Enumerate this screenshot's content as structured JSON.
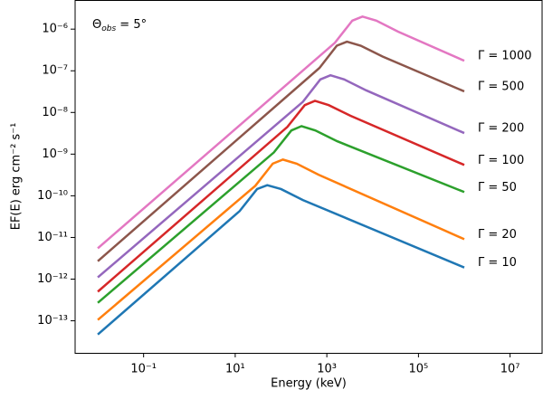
{
  "chart_data": {
    "type": "line",
    "x_label": "Energy (keV)",
    "y_label": "EF(E) erg cm⁻² s⁻¹",
    "annotation": {
      "symbol": "Θ",
      "subscript": "obs",
      "text": " = 5°"
    },
    "log_x": true,
    "log_y": true,
    "xlim": [
      0.0032,
      50000000
    ],
    "ylim": [
      1.7e-14,
      5e-06
    ],
    "xticks": [
      {
        "value": 0.1,
        "label": "10⁻¹"
      },
      {
        "value": 10,
        "label": "10¹"
      },
      {
        "value": 1000,
        "label": "10³"
      },
      {
        "value": 100000,
        "label": "10⁵"
      },
      {
        "value": 10000000,
        "label": "10⁷"
      }
    ],
    "yticks": [
      {
        "value": 1e-13,
        "label": "10⁻¹³"
      },
      {
        "value": 1e-12,
        "label": "10⁻¹²"
      },
      {
        "value": 1e-11,
        "label": "10⁻¹¹"
      },
      {
        "value": 1e-10,
        "label": "10⁻¹⁰"
      },
      {
        "value": 1e-09,
        "label": "10⁻⁹"
      },
      {
        "value": 1e-08,
        "label": "10⁻⁸"
      },
      {
        "value": 1e-07,
        "label": "10⁻⁷"
      },
      {
        "value": 1e-06,
        "label": "10⁻⁶"
      }
    ],
    "series": [
      {
        "name": "Γ = 10",
        "color": "#1f77b4",
        "x": [
          0.01,
          12.5,
          30,
          50,
          100,
          300,
          1000000
        ],
        "values": [
          4.7e-14,
          4.3e-11,
          1.45e-10,
          1.8e-10,
          1.45e-10,
          7.9e-11,
          1.9e-12
        ]
      },
      {
        "name": "Γ = 20",
        "color": "#ff7f0e",
        "x": [
          0.01,
          27.5,
          66,
          110,
          220,
          660,
          1000000
        ],
        "values": [
          1.05e-13,
          1.74e-10,
          5.9e-10,
          7.4e-10,
          5.9e-10,
          3.2e-10,
          9.1e-12
        ]
      },
      {
        "name": "Γ = 50",
        "color": "#2ca02c",
        "x": [
          0.01,
          70,
          168,
          280,
          560,
          1680,
          1000000
        ],
        "values": [
          2.7e-13,
          1.1e-09,
          3.7e-09,
          4.7e-09,
          3.7e-09,
          2.04e-09,
          1.23e-10
        ]
      },
      {
        "name": "Γ = 100",
        "color": "#d62728",
        "x": [
          0.01,
          137.5,
          330,
          550,
          1100,
          3300,
          1000000
        ],
        "values": [
          5e-13,
          4.5e-09,
          1.5e-08,
          1.9e-08,
          1.5e-08,
          8.3e-09,
          5.5e-10
        ]
      },
      {
        "name": "Γ = 200",
        "color": "#9467bd",
        "x": [
          0.01,
          300,
          720,
          1200,
          2400,
          7200,
          1000000
        ],
        "values": [
          1.1e-12,
          1.8e-08,
          6.2e-08,
          7.8e-08,
          6.2e-08,
          3.4e-08,
          3.2e-09
        ]
      },
      {
        "name": "Γ = 500",
        "color": "#8c564b",
        "x": [
          0.01,
          690,
          1650,
          2750,
          5500,
          16500,
          1000000
        ],
        "values": [
          2.7e-12,
          1.17e-07,
          4e-07,
          5e-07,
          4e-07,
          2.2e-07,
          3.2e-08
        ]
      },
      {
        "name": "Γ = 1000",
        "color": "#e377c2",
        "x": [
          0.01,
          1500,
          3600,
          6000,
          12000,
          36000,
          1000000
        ],
        "values": [
          5.5e-12,
          4.7e-07,
          1.6e-06,
          2e-06,
          1.6e-06,
          8.7e-07,
          1.74e-07
        ]
      }
    ]
  }
}
